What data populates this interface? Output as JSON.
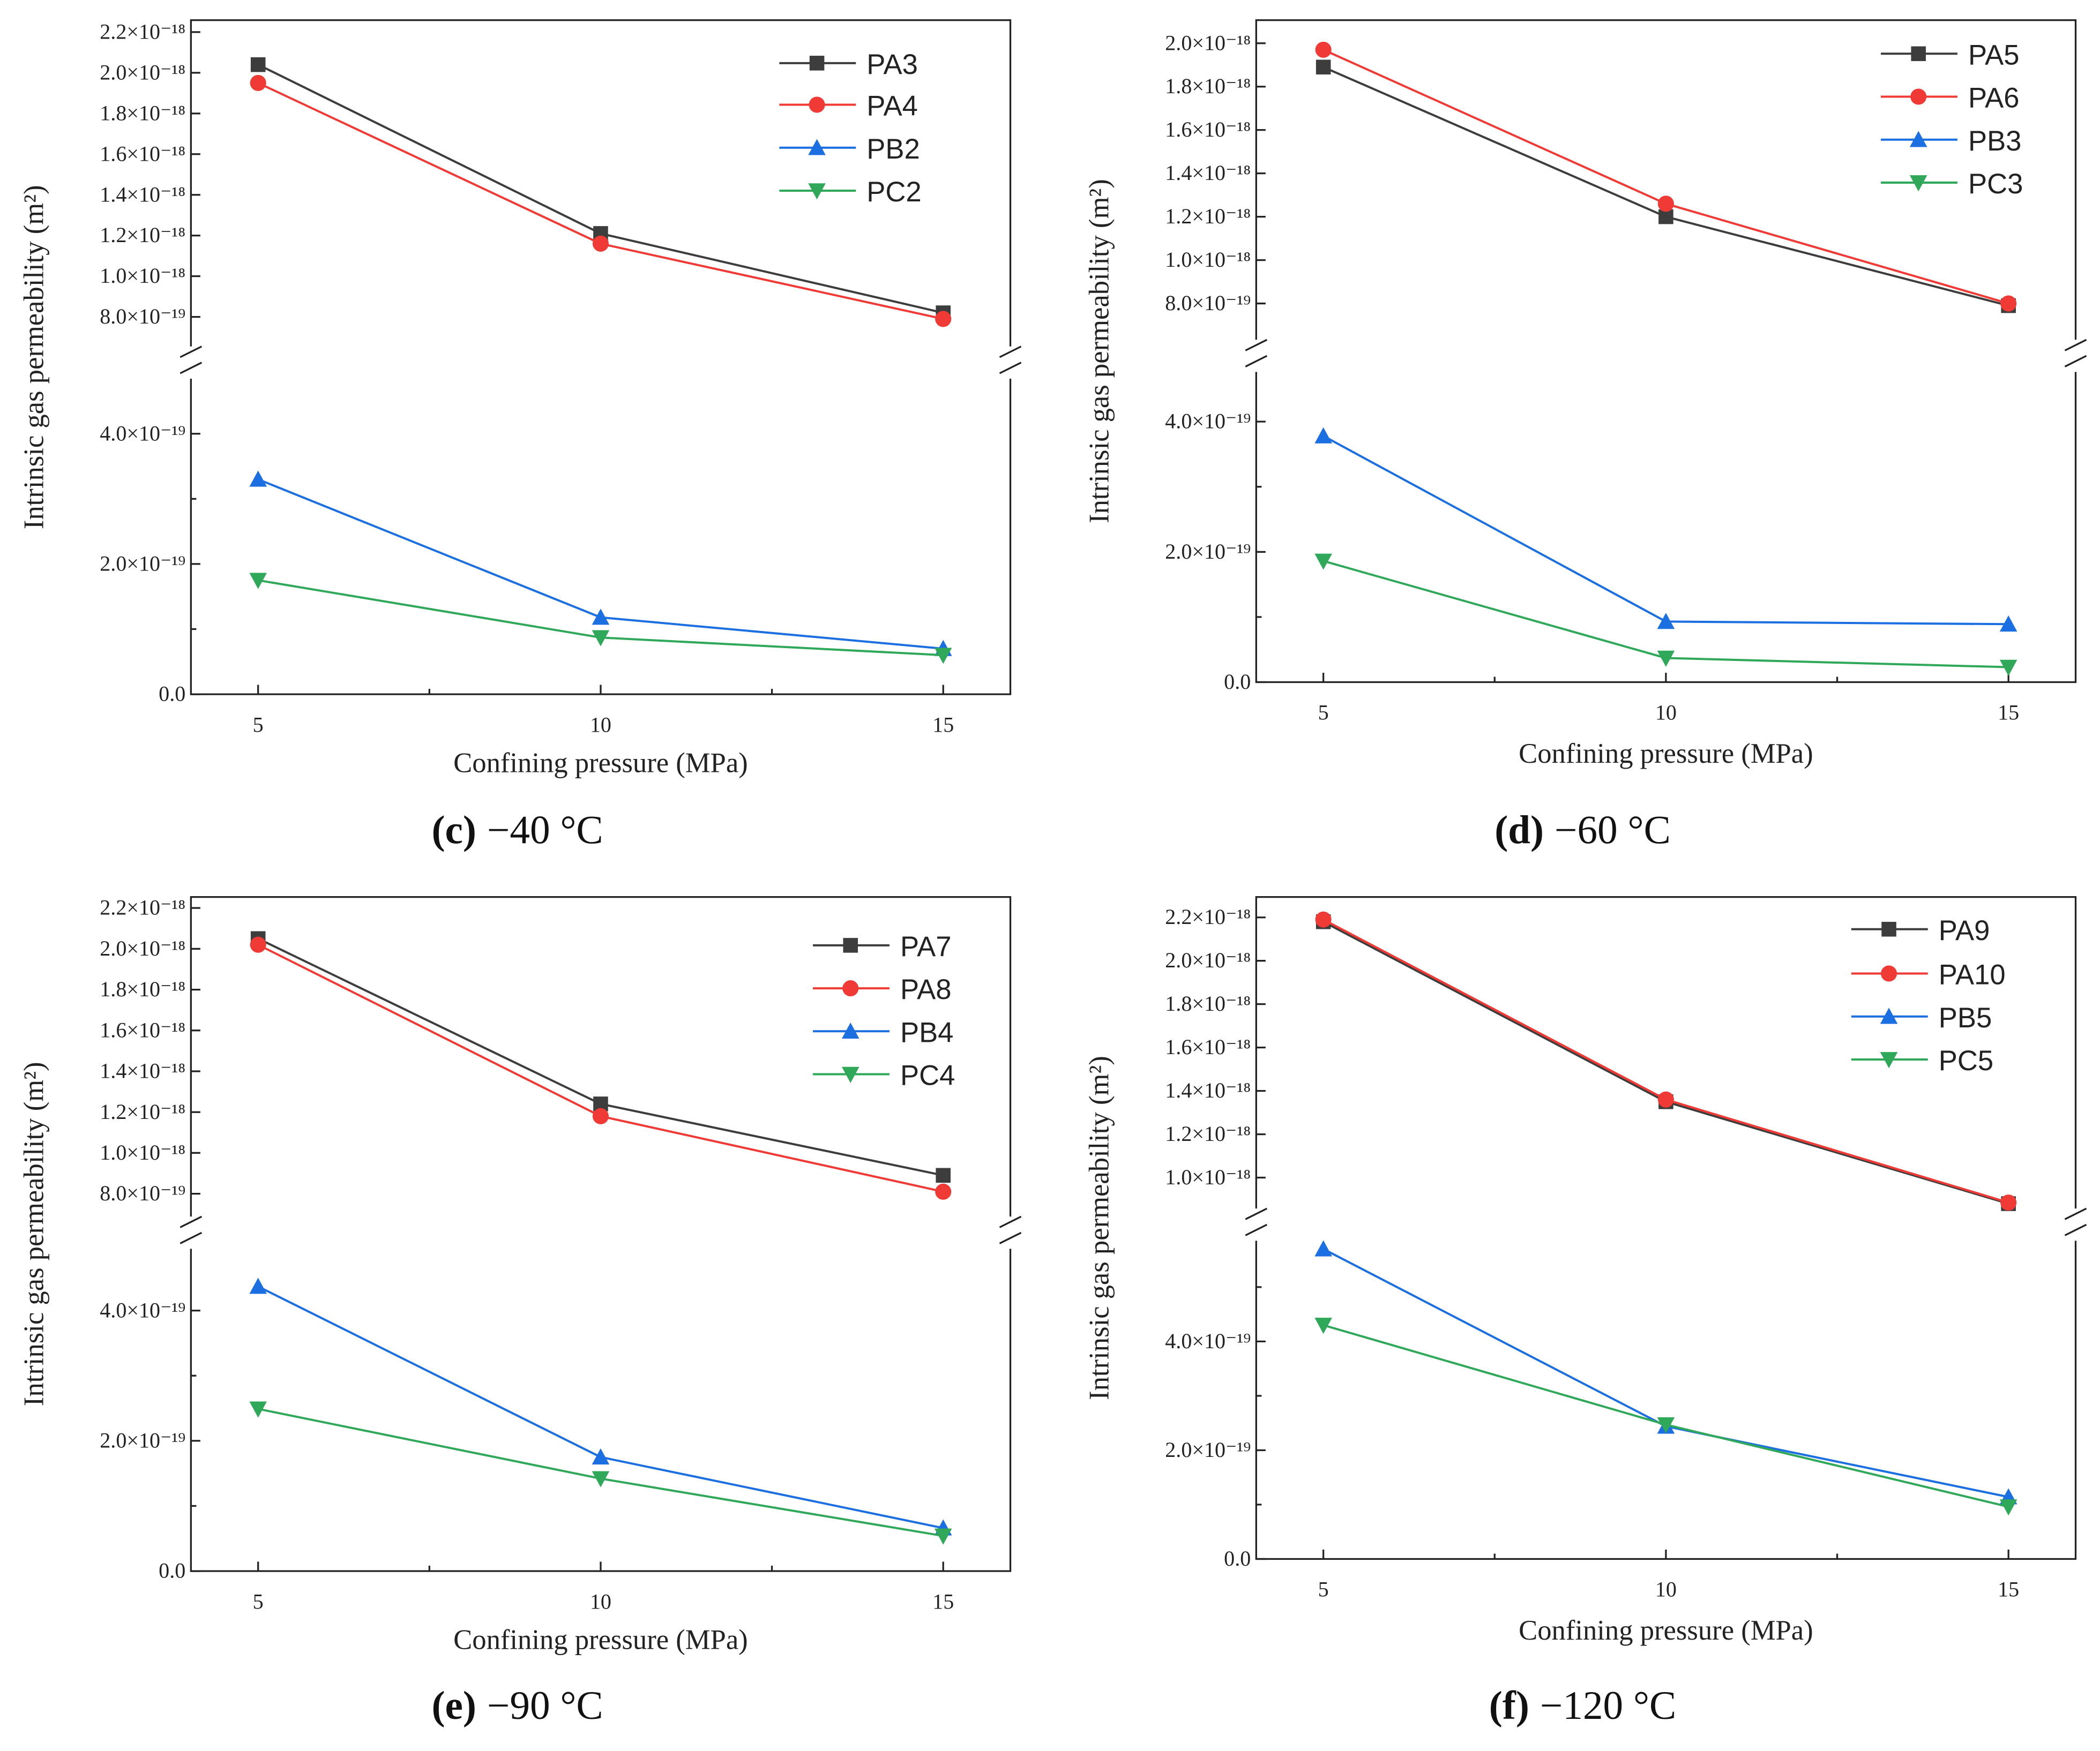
{
  "chart_data": [
    {
      "type": "line",
      "caption_letter": "(c)",
      "caption_temp": "−40 °C",
      "xlabel": "Confining pressure (MPa)",
      "ylabel": "Intrinsic gas permeability (m²)",
      "x": [
        5,
        10,
        15
      ],
      "x_ticks": [
        "5",
        "10",
        "15"
      ],
      "y_axis_broken": true,
      "upper_ticks": [
        "8.0×10⁻¹⁹",
        "1.0×10⁻¹⁸",
        "1.2×10⁻¹⁸",
        "1.4×10⁻¹⁸",
        "1.6×10⁻¹⁸",
        "1.8×10⁻¹⁸",
        "2.0×10⁻¹⁸",
        "2.2×10⁻¹⁸"
      ],
      "upper_tick_values_e18": [
        0.8,
        1.0,
        1.2,
        1.4,
        1.6,
        1.8,
        2.0,
        2.2
      ],
      "lower_ticks": [
        "0.0",
        "2.0×10⁻¹⁹",
        "4.0×10⁻¹⁹"
      ],
      "lower_tick_values_e19": [
        0,
        2,
        4
      ],
      "legend_position": "top-right",
      "series": [
        {
          "name": "PA3",
          "segment": "upper",
          "marker": "square",
          "color": "#3d3d3d",
          "values": [
            2.04e-18,
            1.21e-18,
            8.2e-19
          ]
        },
        {
          "name": "PA4",
          "segment": "upper",
          "marker": "circle",
          "color": "#f03a35",
          "values": [
            1.95e-18,
            1.16e-18,
            7.9e-19
          ]
        },
        {
          "name": "PB2",
          "segment": "lower",
          "marker": "triangle-up",
          "color": "#1c6fe0",
          "values": [
            3.3e-19,
            1.18e-19,
            7e-20
          ]
        },
        {
          "name": "PC2",
          "segment": "lower",
          "marker": "triangle-down",
          "color": "#2fa85a",
          "values": [
            1.75e-19,
            8.7e-20,
            6e-20
          ]
        }
      ]
    },
    {
      "type": "line",
      "caption_letter": "(d)",
      "caption_temp": "−60 °C",
      "xlabel": "Confining pressure (MPa)",
      "ylabel": "Intrinsic gas permeability (m²)",
      "x": [
        5,
        10,
        15
      ],
      "x_ticks": [
        "5",
        "10",
        "15"
      ],
      "y_axis_broken": true,
      "upper_ticks": [
        "8.0×10⁻¹⁹",
        "1.0×10⁻¹⁸",
        "1.2×10⁻¹⁸",
        "1.4×10⁻¹⁸",
        "1.6×10⁻¹⁸",
        "1.8×10⁻¹⁸",
        "2.0×10⁻¹⁸"
      ],
      "upper_tick_values_e18": [
        0.8,
        1.0,
        1.2,
        1.4,
        1.6,
        1.8,
        2.0
      ],
      "lower_ticks": [
        "0.0",
        "2.0×10⁻¹⁹",
        "4.0×10⁻¹⁹"
      ],
      "lower_tick_values_e19": [
        0,
        2,
        4
      ],
      "legend_position": "top-right",
      "series": [
        {
          "name": "PA5",
          "segment": "upper",
          "marker": "square",
          "color": "#3d3d3d",
          "values": [
            1.89e-18,
            1.2e-18,
            7.9e-19
          ]
        },
        {
          "name": "PA6",
          "segment": "upper",
          "marker": "circle",
          "color": "#f03a35",
          "values": [
            1.97e-18,
            1.26e-18,
            8e-19
          ]
        },
        {
          "name": "PB3",
          "segment": "lower",
          "marker": "triangle-up",
          "color": "#1c6fe0",
          "values": [
            3.78e-19,
            9.3e-20,
            8.9e-20
          ]
        },
        {
          "name": "PC3",
          "segment": "lower",
          "marker": "triangle-down",
          "color": "#2fa85a",
          "values": [
            1.86e-19,
            3.7e-20,
            2.3e-20
          ]
        }
      ]
    },
    {
      "type": "line",
      "caption_letter": "(e)",
      "caption_temp": "−90 °C",
      "xlabel": "Confining pressure (MPa)",
      "ylabel": "Intrinsic gas permeability (m²)",
      "x": [
        5,
        10,
        15
      ],
      "x_ticks": [
        "5",
        "10",
        "15"
      ],
      "y_axis_broken": true,
      "upper_ticks": [
        "8.0×10⁻¹⁹",
        "1.0×10⁻¹⁸",
        "1.2×10⁻¹⁸",
        "1.4×10⁻¹⁸",
        "1.6×10⁻¹⁸",
        "1.8×10⁻¹⁸",
        "2.0×10⁻¹⁸",
        "2.2×10⁻¹⁸"
      ],
      "upper_tick_values_e18": [
        0.8,
        1.0,
        1.2,
        1.4,
        1.6,
        1.8,
        2.0,
        2.2
      ],
      "lower_ticks": [
        "0.0",
        "2.0×10⁻¹⁹",
        "4.0×10⁻¹⁹"
      ],
      "lower_tick_values_e19": [
        0,
        2,
        4
      ],
      "legend_position": "top-right",
      "series": [
        {
          "name": "PA7",
          "segment": "upper",
          "marker": "square",
          "color": "#3d3d3d",
          "values": [
            2.05e-18,
            1.24e-18,
            8.9e-19
          ]
        },
        {
          "name": "PA8",
          "segment": "upper",
          "marker": "circle",
          "color": "#f03a35",
          "values": [
            2.02e-18,
            1.18e-18,
            8.1e-19
          ]
        },
        {
          "name": "PB4",
          "segment": "lower",
          "marker": "triangle-up",
          "color": "#1c6fe0",
          "values": [
            4.37e-19,
            1.75e-19,
            6.6e-20
          ]
        },
        {
          "name": "PC4",
          "segment": "lower",
          "marker": "triangle-down",
          "color": "#2fa85a",
          "values": [
            2.49e-19,
            1.42e-19,
            5.4e-20
          ]
        }
      ]
    },
    {
      "type": "line",
      "caption_letter": "(f)",
      "caption_temp": "−120 °C",
      "xlabel": "Confining pressure (MPa)",
      "ylabel": "Intrinsic gas permeability (m²)",
      "x": [
        5,
        10,
        15
      ],
      "x_ticks": [
        "5",
        "10",
        "15"
      ],
      "y_axis_broken": true,
      "upper_ticks": [
        "1.0×10⁻¹⁸",
        "1.2×10⁻¹⁸",
        "1.4×10⁻¹⁸",
        "1.6×10⁻¹⁸",
        "1.8×10⁻¹⁸",
        "2.0×10⁻¹⁸",
        "2.2×10⁻¹⁸"
      ],
      "upper_tick_values_e18": [
        1.0,
        1.2,
        1.4,
        1.6,
        1.8,
        2.0,
        2.2
      ],
      "lower_ticks": [
        "0.0",
        "2.0×10⁻¹⁹",
        "4.0×10⁻¹⁹"
      ],
      "lower_tick_values_e19": [
        0,
        2,
        4
      ],
      "legend_position": "top-right",
      "series": [
        {
          "name": "PA9",
          "segment": "upper",
          "marker": "square",
          "color": "#3d3d3d",
          "values": [
            2.18e-18,
            1.35e-18,
            8.8e-19
          ]
        },
        {
          "name": "PA10",
          "segment": "upper",
          "marker": "circle",
          "color": "#f03a35",
          "values": [
            2.19e-18,
            1.36e-18,
            8.85e-19
          ]
        },
        {
          "name": "PB5",
          "segment": "lower",
          "marker": "triangle-up",
          "color": "#1c6fe0",
          "values": [
            5.7e-19,
            2.44e-19,
            1.14e-19
          ]
        },
        {
          "name": "PC5",
          "segment": "lower",
          "marker": "triangle-down",
          "color": "#2fa85a",
          "values": [
            4.3e-19,
            2.47e-19,
            9.6e-20
          ]
        }
      ]
    }
  ]
}
